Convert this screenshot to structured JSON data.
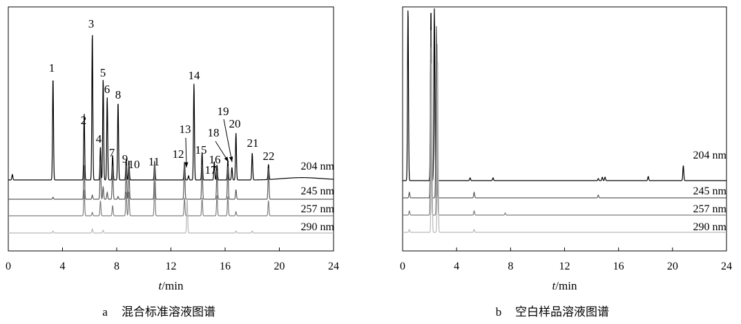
{
  "chart_data": [
    {
      "type": "line",
      "panel_label": "a",
      "caption": "混合标准溶液图谱",
      "xlabel_italic": "t",
      "xlabel_unit": "/min",
      "xlim": [
        0,
        24
      ],
      "x_ticks": [
        0,
        4,
        8,
        12,
        16,
        20,
        24
      ],
      "series": [
        {
          "name": "204 nm",
          "color": "#000000",
          "peaks": [
            [
              0.3,
              8
            ],
            [
              3.3,
              148
            ],
            [
              5.6,
              97
            ],
            [
              6.2,
              213
            ],
            [
              6.8,
              48
            ],
            [
              7.0,
              147
            ],
            [
              7.3,
              120
            ],
            [
              7.7,
              36
            ],
            [
              8.1,
              113
            ],
            [
              8.7,
              30
            ],
            [
              8.9,
              28
            ],
            [
              10.8,
              27
            ],
            [
              13.0,
              26
            ],
            [
              13.3,
              6
            ],
            [
              13.7,
              140
            ],
            [
              14.3,
              40
            ],
            [
              15.2,
              27
            ],
            [
              15.4,
              22
            ],
            [
              16.2,
              28
            ],
            [
              16.5,
              18
            ],
            [
              16.8,
              68
            ],
            [
              18.0,
              39
            ],
            [
              19.2,
              22
            ]
          ]
        },
        {
          "name": "245 nm",
          "color": "#5a5a5a",
          "peaks": [
            [
              3.3,
              3
            ],
            [
              5.6,
              50
            ],
            [
              6.2,
              6
            ],
            [
              6.8,
              55
            ],
            [
              7.0,
              18
            ],
            [
              7.3,
              10
            ],
            [
              7.7,
              48
            ],
            [
              8.1,
              4
            ],
            [
              8.7,
              50
            ],
            [
              8.9,
              50
            ],
            [
              10.8,
              56
            ],
            [
              13.0,
              55
            ],
            [
              14.3,
              50
            ],
            [
              15.4,
              42
            ],
            [
              16.2,
              48
            ],
            [
              16.8,
              14
            ],
            [
              19.2,
              45
            ]
          ]
        },
        {
          "name": "257 nm",
          "color": "#7e7e7e",
          "peaks": [
            [
              5.6,
              38
            ],
            [
              6.2,
              5
            ],
            [
              6.8,
              22
            ],
            [
              7.7,
              15
            ],
            [
              8.7,
              35
            ],
            [
              8.9,
              35
            ],
            [
              10.8,
              48
            ],
            [
              13.0,
              26
            ],
            [
              14.3,
              26
            ],
            [
              15.4,
              30
            ],
            [
              16.2,
              28
            ],
            [
              16.8,
              6
            ],
            [
              19.2,
              22
            ]
          ]
        },
        {
          "name": "290 nm",
          "color": "#b8b8b8",
          "peaks": [
            [
              3.3,
              3
            ],
            [
              6.2,
              6
            ],
            [
              7.0,
              4
            ],
            [
              13.2,
              50
            ],
            [
              16.8,
              3
            ],
            [
              18.0,
              3
            ]
          ]
        }
      ],
      "peak_labels": [
        "1",
        "2",
        "3",
        "4",
        "5",
        "6",
        "7",
        "8",
        "9",
        "10",
        "11",
        "12",
        "13",
        "14",
        "15",
        "16",
        "17",
        "18",
        "19",
        "20",
        "21",
        "22"
      ]
    },
    {
      "type": "line",
      "panel_label": "b",
      "caption": "空白样品溶液图谱",
      "xlabel_italic": "t",
      "xlabel_unit": "/min",
      "xlim": [
        0,
        24
      ],
      "x_ticks": [
        0,
        4,
        8,
        12,
        16,
        20,
        24
      ],
      "series": [
        {
          "name": "204 nm",
          "color": "#000000",
          "peaks": [
            [
              0.4,
              250
            ],
            [
              2.1,
              250
            ],
            [
              2.35,
              250
            ],
            [
              5.0,
              4
            ],
            [
              6.7,
              4
            ],
            [
              14.5,
              3
            ],
            [
              14.8,
              5
            ],
            [
              15.0,
              5
            ],
            [
              18.2,
              6
            ],
            [
              20.8,
              22
            ]
          ]
        },
        {
          "name": "245 nm",
          "color": "#5a5a5a",
          "peaks": [
            [
              0.5,
              8
            ],
            [
              2.1,
              250
            ],
            [
              2.5,
              250
            ],
            [
              5.3,
              8
            ],
            [
              14.5,
              4
            ]
          ]
        },
        {
          "name": "257 nm",
          "color": "#7e7e7e",
          "peaks": [
            [
              0.5,
              6
            ],
            [
              2.1,
              250
            ],
            [
              2.55,
              250
            ],
            [
              5.3,
              6
            ],
            [
              7.6,
              3
            ]
          ]
        },
        {
          "name": "290 nm",
          "color": "#b8b8b8",
          "peaks": [
            [
              0.5,
              4
            ],
            [
              2.15,
              250
            ],
            [
              2.6,
              250
            ],
            [
              5.3,
              4
            ]
          ]
        }
      ]
    }
  ]
}
